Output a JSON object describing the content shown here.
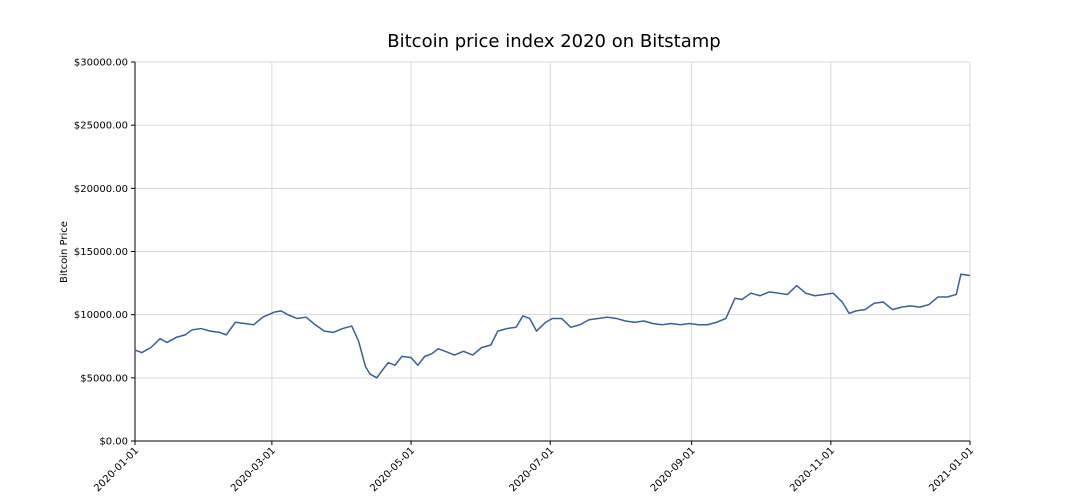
{
  "chart_data": {
    "type": "line",
    "title": "Bitcoin price index 2020 on Bitstamp",
    "xlabel": "",
    "ylabel": "Bitcoin Price",
    "xlim": [
      "2020-01-01",
      "2021-01-01"
    ],
    "ylim": [
      0,
      30000
    ],
    "grid": true,
    "legend": "none",
    "line_color": "#3a5f98",
    "y_ticks": [
      {
        "value": 0,
        "label": "$0.00"
      },
      {
        "value": 5000,
        "label": "$5000.00"
      },
      {
        "value": 10000,
        "label": "$10000.00"
      },
      {
        "value": 15000,
        "label": "$15000.00"
      },
      {
        "value": 20000,
        "label": "$20000.00"
      },
      {
        "value": 25000,
        "label": "$25000.00"
      },
      {
        "value": 30000,
        "label": "$30000.00"
      }
    ],
    "x_ticks": [
      {
        "value": "2020-01-01",
        "label": "2020-01-01"
      },
      {
        "value": "2020-03-01",
        "label": "2020-03-01"
      },
      {
        "value": "2020-05-01",
        "label": "2020-05-01"
      },
      {
        "value": "2020-07-01",
        "label": "2020-07-01"
      },
      {
        "value": "2020-09-01",
        "label": "2020-09-01"
      },
      {
        "value": "2020-11-01",
        "label": "2020-11-01"
      },
      {
        "value": "2021-01-01",
        "label": "2021-01-01"
      }
    ],
    "series": [
      {
        "points": [
          {
            "x": "2020-01-01",
            "y": 7200
          },
          {
            "x": "2020-01-04",
            "y": 7000
          },
          {
            "x": "2020-01-08",
            "y": 7400
          },
          {
            "x": "2020-01-12",
            "y": 8100
          },
          {
            "x": "2020-01-15",
            "y": 7800
          },
          {
            "x": "2020-01-19",
            "y": 8200
          },
          {
            "x": "2020-01-23",
            "y": 8400
          },
          {
            "x": "2020-01-26",
            "y": 8800
          },
          {
            "x": "2020-01-30",
            "y": 8900
          },
          {
            "x": "2020-02-03",
            "y": 8700
          },
          {
            "x": "2020-02-07",
            "y": 8600
          },
          {
            "x": "2020-02-10",
            "y": 8400
          },
          {
            "x": "2020-02-14",
            "y": 9400
          },
          {
            "x": "2020-02-18",
            "y": 9300
          },
          {
            "x": "2020-02-22",
            "y": 9200
          },
          {
            "x": "2020-02-26",
            "y": 9800
          },
          {
            "x": "2020-03-02",
            "y": 10200
          },
          {
            "x": "2020-03-05",
            "y": 10300
          },
          {
            "x": "2020-03-08",
            "y": 10000
          },
          {
            "x": "2020-03-12",
            "y": 9700
          },
          {
            "x": "2020-03-16",
            "y": 9800
          },
          {
            "x": "2020-03-20",
            "y": 9200
          },
          {
            "x": "2020-03-24",
            "y": 8700
          },
          {
            "x": "2020-03-28",
            "y": 8600
          },
          {
            "x": "2020-04-01",
            "y": 8900
          },
          {
            "x": "2020-04-05",
            "y": 9100
          },
          {
            "x": "2020-04-08",
            "y": 7900
          },
          {
            "x": "2020-04-11",
            "y": 5900
          },
          {
            "x": "2020-04-13",
            "y": 5300
          },
          {
            "x": "2020-04-16",
            "y": 5000
          },
          {
            "x": "2020-04-18",
            "y": 5500
          },
          {
            "x": "2020-04-21",
            "y": 6200
          },
          {
            "x": "2020-04-24",
            "y": 6000
          },
          {
            "x": "2020-04-27",
            "y": 6700
          },
          {
            "x": "2020-05-01",
            "y": 6600
          },
          {
            "x": "2020-05-04",
            "y": 6000
          },
          {
            "x": "2020-05-07",
            "y": 6700
          },
          {
            "x": "2020-05-10",
            "y": 6900
          },
          {
            "x": "2020-05-13",
            "y": 7300
          },
          {
            "x": "2020-05-16",
            "y": 7100
          },
          {
            "x": "2020-05-20",
            "y": 6800
          },
          {
            "x": "2020-05-24",
            "y": 7100
          },
          {
            "x": "2020-05-28",
            "y": 6800
          },
          {
            "x": "2020-06-01",
            "y": 7400
          },
          {
            "x": "2020-06-05",
            "y": 7600
          },
          {
            "x": "2020-06-08",
            "y": 8700
          },
          {
            "x": "2020-06-12",
            "y": 8900
          },
          {
            "x": "2020-06-16",
            "y": 9000
          },
          {
            "x": "2020-06-19",
            "y": 9900
          },
          {
            "x": "2020-06-22",
            "y": 9700
          },
          {
            "x": "2020-06-25",
            "y": 8700
          },
          {
            "x": "2020-06-29",
            "y": 9400
          },
          {
            "x": "2020-07-02",
            "y": 9700
          },
          {
            "x": "2020-07-06",
            "y": 9700
          },
          {
            "x": "2020-07-10",
            "y": 9000
          },
          {
            "x": "2020-07-14",
            "y": 9200
          },
          {
            "x": "2020-07-18",
            "y": 9600
          },
          {
            "x": "2020-07-22",
            "y": 9700
          },
          {
            "x": "2020-07-26",
            "y": 9800
          },
          {
            "x": "2020-07-30",
            "y": 9700
          },
          {
            "x": "2020-08-03",
            "y": 9500
          },
          {
            "x": "2020-08-07",
            "y": 9400
          },
          {
            "x": "2020-08-11",
            "y": 9500
          },
          {
            "x": "2020-08-15",
            "y": 9300
          },
          {
            "x": "2020-08-19",
            "y": 9200
          },
          {
            "x": "2020-08-23",
            "y": 9300
          },
          {
            "x": "2020-08-27",
            "y": 9200
          },
          {
            "x": "2020-08-31",
            "y": 9300
          },
          {
            "x": "2020-09-04",
            "y": 9200
          },
          {
            "x": "2020-09-08",
            "y": 9200
          },
          {
            "x": "2020-09-12",
            "y": 9400
          },
          {
            "x": "2020-09-16",
            "y": 9700
          },
          {
            "x": "2020-09-20",
            "y": 11300
          },
          {
            "x": "2020-09-23",
            "y": 11200
          },
          {
            "x": "2020-09-27",
            "y": 11700
          },
          {
            "x": "2020-10-01",
            "y": 11500
          },
          {
            "x": "2020-10-05",
            "y": 11800
          },
          {
            "x": "2020-10-09",
            "y": 11700
          },
          {
            "x": "2020-10-13",
            "y": 11600
          },
          {
            "x": "2020-10-17",
            "y": 12300
          },
          {
            "x": "2020-10-21",
            "y": 11700
          },
          {
            "x": "2020-10-25",
            "y": 11500
          },
          {
            "x": "2020-10-29",
            "y": 11600
          },
          {
            "x": "2020-11-02",
            "y": 11700
          },
          {
            "x": "2020-11-06",
            "y": 11000
          },
          {
            "x": "2020-11-09",
            "y": 10100
          },
          {
            "x": "2020-11-12",
            "y": 10300
          },
          {
            "x": "2020-11-16",
            "y": 10400
          },
          {
            "x": "2020-11-20",
            "y": 10900
          },
          {
            "x": "2020-11-24",
            "y": 11000
          },
          {
            "x": "2020-11-28",
            "y": 10400
          },
          {
            "x": "2020-12-02",
            "y": 10600
          },
          {
            "x": "2020-12-06",
            "y": 10700
          },
          {
            "x": "2020-12-10",
            "y": 10600
          },
          {
            "x": "2020-12-14",
            "y": 10800
          },
          {
            "x": "2020-12-18",
            "y": 11400
          },
          {
            "x": "2020-12-22",
            "y": 11400
          },
          {
            "x": "2020-12-26",
            "y": 11600
          },
          {
            "x": "2020-12-28",
            "y": 13200
          },
          {
            "x": "2021-01-01",
            "y": 13100
          }
        ]
      }
    ]
  }
}
